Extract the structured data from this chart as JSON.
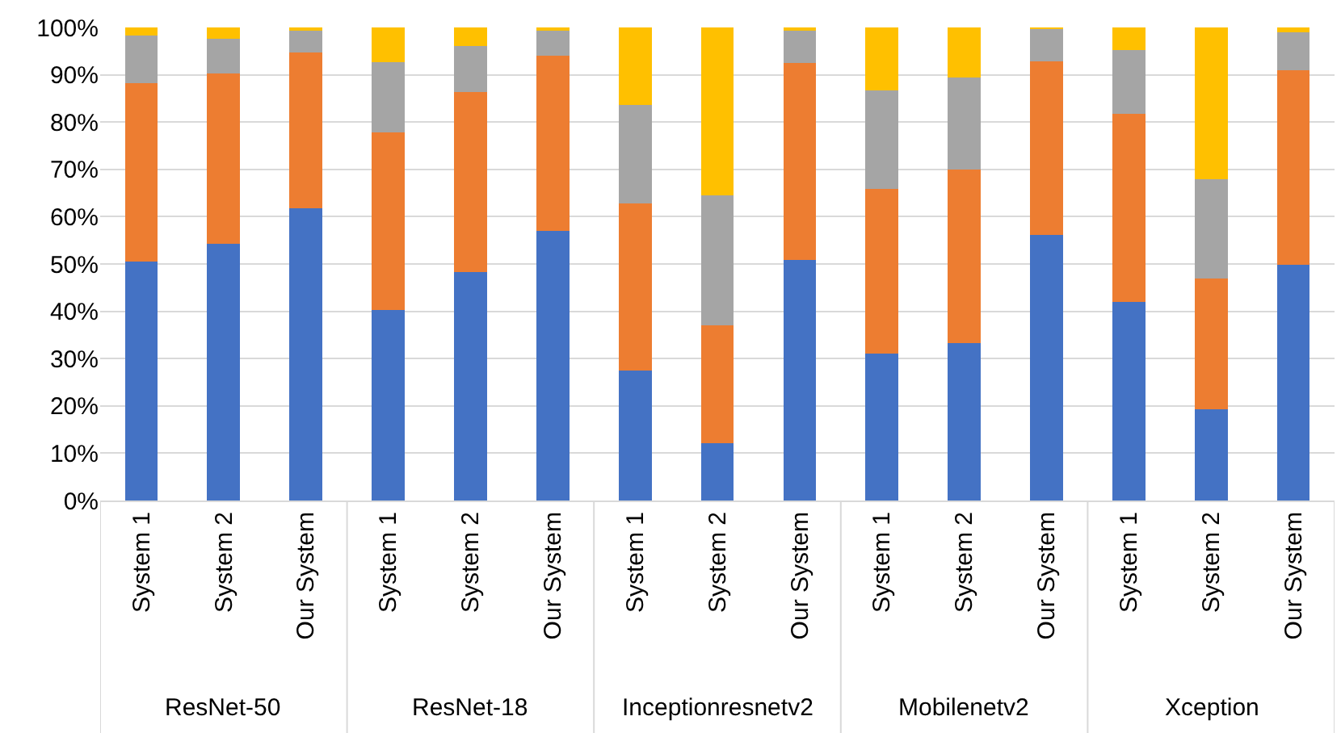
{
  "chart_data": {
    "type": "bar",
    "stacked": true,
    "categories": [
      "System 1",
      "System 2",
      "Our System",
      "System 1",
      "System 2",
      "Our System",
      "System 1",
      "System 2",
      "Our System",
      "System 1",
      "System 2",
      "Our System",
      "System 1",
      "System 2",
      "Our System"
    ],
    "annotations": [
      "ResNet-50",
      "ResNet-18",
      "Inceptionresnetv2",
      "Mobilenetv2",
      "Xception"
    ],
    "series": [
      {
        "color": "#4472c4",
        "values": [
          50.5,
          54.2,
          61.8,
          40.2,
          48.3,
          57,
          27.4,
          12.2,
          50.9,
          31.1,
          33.2,
          56.2,
          41.9,
          19.2,
          49.8
        ]
      },
      {
        "color": "#ed7d31",
        "values": [
          37.8,
          36.1,
          32.9,
          37.7,
          38,
          37,
          35.4,
          24.8,
          41.6,
          34.8,
          36.7,
          36.6,
          39.8,
          27.7,
          41.2
        ]
      },
      {
        "color": "#a5a5a5",
        "values": [
          10,
          7.3,
          4.9,
          14.7,
          9.7,
          5.6,
          20.8,
          27.5,
          7.1,
          20.8,
          19.6,
          7,
          13.5,
          21.1,
          8
        ]
      },
      {
        "color": "#ffc000",
        "values": [
          1.7,
          2.4,
          0.4,
          7.4,
          4,
          0.4,
          16.4,
          35.5,
          0.4,
          13.3,
          10.5,
          0.2,
          4.8,
          32,
          1
        ]
      }
    ],
    "ylim": [
      0,
      100
    ],
    "yticks": [
      {
        "value": 0,
        "label": "0%"
      },
      {
        "value": 10,
        "label": "10%"
      },
      {
        "value": 20,
        "label": "20%"
      },
      {
        "value": 30,
        "label": "30%"
      },
      {
        "value": 40,
        "label": "40%"
      },
      {
        "value": 50,
        "label": "50%"
      },
      {
        "value": 60,
        "label": "60%"
      },
      {
        "value": 70,
        "label": "70%"
      },
      {
        "value": 80,
        "label": "80%"
      },
      {
        "value": 90,
        "label": "90%"
      },
      {
        "value": 100,
        "label": "100%"
      }
    ],
    "grid": "y"
  }
}
